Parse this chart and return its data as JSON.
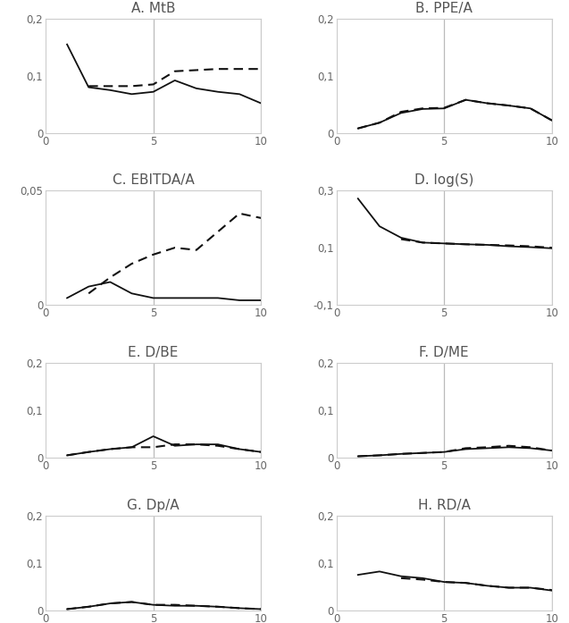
{
  "panels": [
    {
      "title": "A. MtB",
      "ylim": [
        0,
        0.2
      ],
      "yticks": [
        0,
        0.1,
        0.2
      ],
      "yticklabels": [
        "0",
        "0,1",
        "0,2"
      ],
      "xlim": [
        0,
        10
      ],
      "xticks": [
        0,
        5,
        10
      ],
      "vlines": [
        5,
        10
      ],
      "solid_x": [
        1,
        2,
        3,
        4,
        5,
        6,
        7,
        8,
        9,
        10
      ],
      "solid_y": [
        0.155,
        0.08,
        0.075,
        0.068,
        0.072,
        0.092,
        0.078,
        0.072,
        0.068,
        0.052
      ],
      "dashed_x": [
        2,
        3,
        4,
        5,
        6,
        7,
        8,
        9,
        10
      ],
      "dashed_y": [
        0.082,
        0.082,
        0.082,
        0.085,
        0.108,
        0.11,
        0.112,
        0.112,
        0.112
      ]
    },
    {
      "title": "B. PPE/A",
      "ylim": [
        0,
        0.2
      ],
      "yticks": [
        0,
        0.1,
        0.2
      ],
      "yticklabels": [
        "0",
        "0,1",
        "0,2"
      ],
      "xlim": [
        0,
        10
      ],
      "xticks": [
        0,
        5,
        10
      ],
      "vlines": [
        5,
        10
      ],
      "solid_x": [
        1,
        2,
        3,
        4,
        5,
        6,
        7,
        8,
        9,
        10
      ],
      "solid_y": [
        0.008,
        0.018,
        0.035,
        0.042,
        0.043,
        0.058,
        0.052,
        0.048,
        0.043,
        0.022
      ],
      "dashed_x": [
        1,
        2,
        3,
        4,
        5,
        6,
        7,
        8,
        9,
        10
      ],
      "dashed_y": [
        0.008,
        0.018,
        0.037,
        0.043,
        0.044,
        0.058,
        0.052,
        0.048,
        0.043,
        0.022
      ]
    },
    {
      "title": "C. EBITDA/A",
      "ylim": [
        0,
        0.05
      ],
      "yticks": [
        0,
        0.05
      ],
      "yticklabels": [
        "0",
        "0,05"
      ],
      "xlim": [
        0,
        10
      ],
      "xticks": [
        0,
        5,
        10
      ],
      "vlines": [
        5,
        10
      ],
      "solid_x": [
        1,
        2,
        3,
        4,
        5,
        6,
        7,
        8,
        9,
        10
      ],
      "solid_y": [
        0.003,
        0.008,
        0.01,
        0.005,
        0.003,
        0.003,
        0.003,
        0.003,
        0.002,
        0.002
      ],
      "dashed_x": [
        2,
        3,
        4,
        5,
        6,
        7,
        8,
        9,
        10
      ],
      "dashed_y": [
        0.005,
        0.012,
        0.018,
        0.022,
        0.025,
        0.024,
        0.032,
        0.04,
        0.038
      ]
    },
    {
      "title": "D. log(S)",
      "ylim": [
        -0.1,
        0.3
      ],
      "yticks": [
        -0.1,
        0.1,
        0.3
      ],
      "yticklabels": [
        "-0,1",
        "0,1",
        "0,3"
      ],
      "xlim": [
        0,
        10
      ],
      "xticks": [
        0,
        5,
        10
      ],
      "vlines": [
        5,
        10
      ],
      "solid_x": [
        1,
        2,
        3,
        4,
        5,
        6,
        7,
        8,
        9,
        10
      ],
      "solid_y": [
        0.272,
        0.175,
        0.135,
        0.118,
        0.115,
        0.112,
        0.11,
        0.105,
        0.102,
        0.098
      ],
      "dashed_x": [
        3,
        4,
        5,
        6,
        7,
        8,
        9,
        10
      ],
      "dashed_y": [
        0.13,
        0.118,
        0.115,
        0.112,
        0.11,
        0.108,
        0.105,
        0.1
      ]
    },
    {
      "title": "E. D/BE",
      "ylim": [
        0,
        0.2
      ],
      "yticks": [
        0,
        0.1,
        0.2
      ],
      "yticklabels": [
        "0",
        "0,1",
        "0,2"
      ],
      "xlim": [
        0,
        10
      ],
      "xticks": [
        0,
        5,
        10
      ],
      "vlines": [
        5,
        10
      ],
      "solid_x": [
        1,
        2,
        3,
        4,
        5,
        6,
        7,
        8,
        9,
        10
      ],
      "solid_y": [
        0.005,
        0.012,
        0.018,
        0.022,
        0.045,
        0.025,
        0.028,
        0.028,
        0.018,
        0.012
      ],
      "dashed_x": [
        1,
        2,
        3,
        4,
        5,
        6,
        7,
        8,
        9,
        10
      ],
      "dashed_y": [
        0.005,
        0.012,
        0.018,
        0.022,
        0.022,
        0.028,
        0.028,
        0.025,
        0.018,
        0.012
      ]
    },
    {
      "title": "F. D/ME",
      "ylim": [
        0,
        0.2
      ],
      "yticks": [
        0,
        0.1,
        0.2
      ],
      "yticklabels": [
        "0",
        "0,1",
        "0,2"
      ],
      "xlim": [
        0,
        10
      ],
      "xticks": [
        0,
        5,
        10
      ],
      "vlines": [
        5,
        10
      ],
      "solid_x": [
        1,
        2,
        3,
        4,
        5,
        6,
        7,
        8,
        9,
        10
      ],
      "solid_y": [
        0.003,
        0.005,
        0.008,
        0.01,
        0.012,
        0.018,
        0.02,
        0.022,
        0.02,
        0.015
      ],
      "dashed_x": [
        1,
        2,
        3,
        4,
        5,
        6,
        7,
        8,
        9,
        10
      ],
      "dashed_y": [
        0.003,
        0.005,
        0.008,
        0.01,
        0.012,
        0.02,
        0.022,
        0.025,
        0.022,
        0.015
      ]
    },
    {
      "title": "G. Dp/A",
      "ylim": [
        0,
        0.2
      ],
      "yticks": [
        0,
        0.1,
        0.2
      ],
      "yticklabels": [
        "0",
        "0,1",
        "0,2"
      ],
      "xlim": [
        0,
        10
      ],
      "xticks": [
        0,
        5,
        10
      ],
      "vlines": [
        5,
        10
      ],
      "solid_x": [
        1,
        2,
        3,
        4,
        5,
        6,
        7,
        8,
        9,
        10
      ],
      "solid_y": [
        0.003,
        0.008,
        0.015,
        0.018,
        0.012,
        0.01,
        0.01,
        0.008,
        0.005,
        0.003
      ],
      "dashed_x": [
        1,
        2,
        3,
        4,
        5,
        6,
        7,
        8,
        9,
        10
      ],
      "dashed_y": [
        0.003,
        0.008,
        0.015,
        0.018,
        0.012,
        0.012,
        0.01,
        0.008,
        0.005,
        0.003
      ]
    },
    {
      "title": "H. RD/A",
      "ylim": [
        0,
        0.2
      ],
      "yticks": [
        0,
        0.1,
        0.2
      ],
      "yticklabels": [
        "0",
        "0,1",
        "0,2"
      ],
      "xlim": [
        0,
        10
      ],
      "xticks": [
        0,
        5,
        10
      ],
      "vlines": [
        5,
        10
      ],
      "solid_x": [
        1,
        2,
        3,
        4,
        5,
        6,
        7,
        8,
        9,
        10
      ],
      "solid_y": [
        0.075,
        0.082,
        0.072,
        0.068,
        0.06,
        0.058,
        0.052,
        0.048,
        0.048,
        0.042
      ],
      "dashed_x": [
        3,
        4,
        5,
        6,
        7,
        8,
        9,
        10
      ],
      "dashed_y": [
        0.068,
        0.065,
        0.06,
        0.058,
        0.052,
        0.048,
        0.048,
        0.043
      ]
    }
  ],
  "line_color": "#111111",
  "vline_color": "#bbbbbb",
  "bg_color": "#ffffff",
  "panel_bg": "#ffffff",
  "border_color": "#cccccc",
  "title_fontsize": 11,
  "tick_fontsize": 8.5,
  "title_color": "#555555"
}
